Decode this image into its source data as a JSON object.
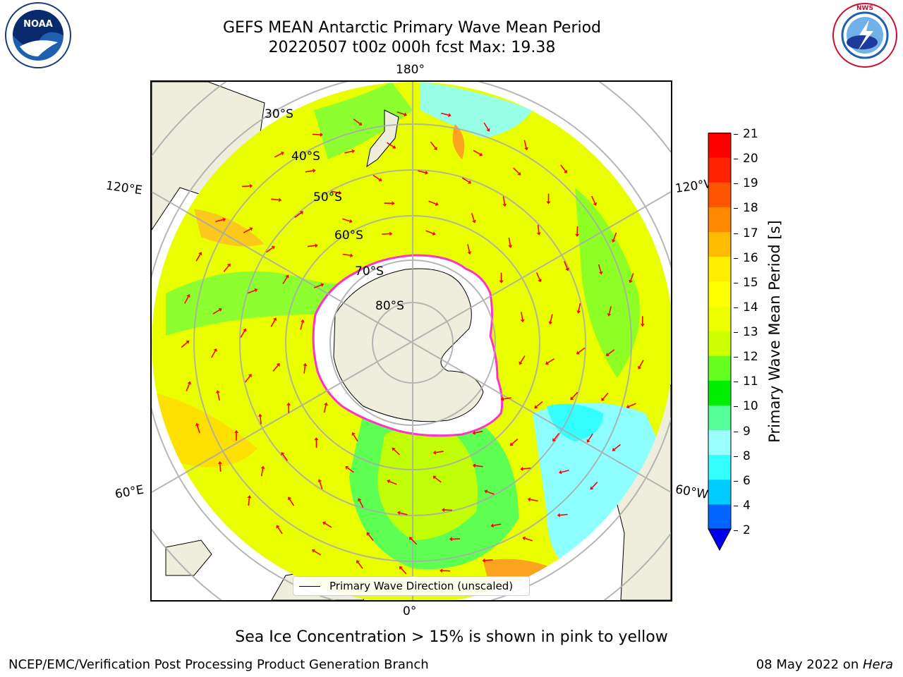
{
  "title": {
    "line1": "GEFS MEAN Antarctic Primary Wave Mean Period",
    "line2": "20220507 t00z 000h fcst   Max: 19.38"
  },
  "logos": {
    "left": {
      "text": "NOAA",
      "ring_text": "NATIONAL OCEANIC AND ATMOSPHERIC ADMINISTRATION · U.S. DEPARTMENT OF COMMERCE"
    },
    "right": {
      "ring_text": "NATIONAL WEATHER SERVICE"
    }
  },
  "map": {
    "projection": "south-polar stereographic",
    "longitude_labels": {
      "top": "180°",
      "bottom": "0°",
      "left_upper": "120°E",
      "left_lower": "60°E",
      "right_upper": "120°W",
      "right_lower": "60°W"
    },
    "latitude_labels": [
      "30°S",
      "40°S",
      "50°S",
      "60°S",
      "70°S",
      "80°S"
    ],
    "legend_entry": "Primary Wave Direction (unscaled)",
    "arrow_color": "#ff0000",
    "land_color": "#efeedc"
  },
  "colorbar": {
    "label": "Primary Wave Mean Period [s]",
    "ticks": [
      "2",
      "4",
      "6",
      "8",
      "9",
      "10",
      "11",
      "12",
      "13",
      "14",
      "15",
      "16",
      "17",
      "18",
      "19",
      "20",
      "21"
    ],
    "colors": [
      "#0066ff",
      "#00ccff",
      "#33ffff",
      "#99ffff",
      "#55ff99",
      "#00ee00",
      "#66ff22",
      "#ccff00",
      "#eeff00",
      "#ffff00",
      "#ffee00",
      "#ffbb00",
      "#ff8800",
      "#ff5500",
      "#ff2200",
      "#ff0000"
    ],
    "extend_color": "#0000ee"
  },
  "note": "Sea Ice Concentration > 15% is shown in pink to yellow",
  "footer": {
    "left": "NCEP/EMC/Verification Post Processing Product Generation Branch",
    "right_prefix": "08 May 2022 on ",
    "right_italic": "Hera"
  }
}
